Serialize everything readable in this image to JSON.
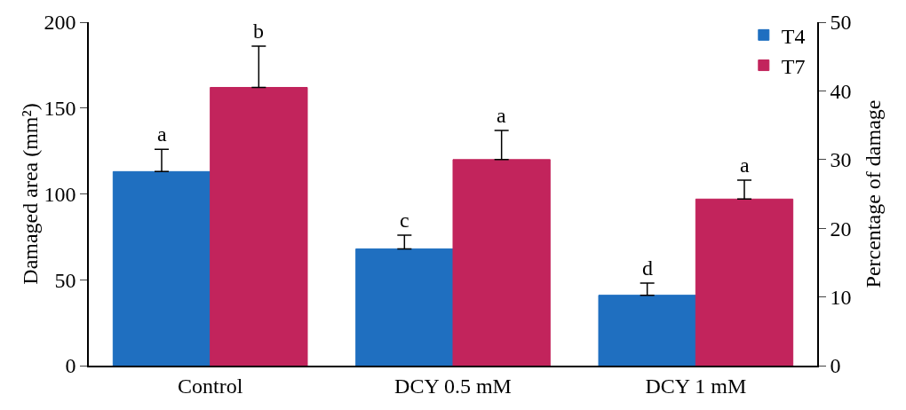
{
  "chart_data": {
    "type": "bar",
    "categories": [
      "Control",
      "DCY 0.5 mM",
      "DCY 1 mM"
    ],
    "series": [
      {
        "name": "T4",
        "color": "#1f6fc0",
        "values": [
          113,
          68,
          41
        ],
        "errors": [
          [
            113,
            126
          ],
          [
            68,
            76
          ],
          [
            41,
            48
          ]
        ],
        "value_labels": [
          "a",
          "c",
          "d"
        ]
      },
      {
        "name": "T7",
        "color": "#c2245c",
        "values": [
          162,
          120,
          97
        ],
        "errors": [
          [
            162,
            186
          ],
          [
            120,
            137
          ],
          [
            97,
            108
          ]
        ],
        "value_labels": [
          "b",
          "a",
          "a"
        ]
      }
    ],
    "ylabel": "Damaged area (mm²)",
    "y2label": "Percentage of damage",
    "ylim": [
      0,
      200
    ],
    "yticks": [
      0,
      50,
      100,
      150,
      200
    ],
    "y2lim": [
      0,
      50
    ],
    "y2ticks": [
      0,
      10,
      20,
      30,
      40,
      50
    ],
    "grid": false,
    "legend": "top right"
  }
}
